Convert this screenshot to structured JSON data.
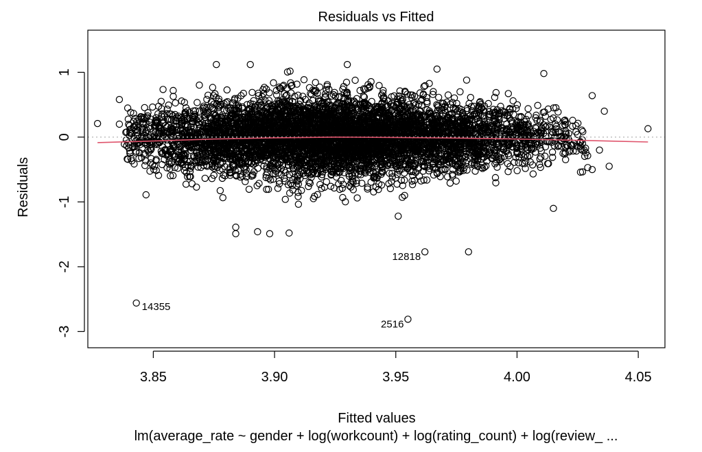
{
  "chart_data": {
    "type": "scatter",
    "title": "Residuals vs Fitted",
    "xlabel": "Fitted values",
    "ylabel": "Residuals",
    "subtitle": "lm(average_rate ~ gender + log(workcount) + log(rating_count) + log(review_ ...",
    "xlim": [
      3.823,
      4.061
    ],
    "ylim": [
      -3.25,
      1.65
    ],
    "x_ticks": [
      3.85,
      3.9,
      3.95,
      4.0,
      4.05
    ],
    "x_tick_labels": [
      "3.85",
      "3.90",
      "3.95",
      "4.00",
      "4.05"
    ],
    "y_ticks": [
      -3,
      -2,
      -1,
      0,
      1
    ],
    "y_tick_labels": [
      "-3",
      "-2",
      "-1",
      "0",
      "1"
    ],
    "reference_line": {
      "y": 0,
      "style": "dotted",
      "color": "#bfbfbf"
    },
    "cloud": {
      "description": "dense elliptical cloud of residuals centered near 0",
      "x_center": 3.925,
      "x_spread": 0.045,
      "y_center": 0,
      "y_spread": 0.33,
      "approx_points": 6000
    },
    "outliers": [
      {
        "x": 3.843,
        "y": -2.56,
        "label": "14355"
      },
      {
        "x": 3.955,
        "y": -2.81,
        "label": "2516"
      },
      {
        "x": 3.962,
        "y": -1.77,
        "label": "12818"
      },
      {
        "x": 3.98,
        "y": -1.77,
        "label": ""
      },
      {
        "x": 3.827,
        "y": 0.21,
        "label": ""
      },
      {
        "x": 3.836,
        "y": 0.58,
        "label": ""
      },
      {
        "x": 3.836,
        "y": 0.2,
        "label": ""
      },
      {
        "x": 3.847,
        "y": -0.89,
        "label": ""
      },
      {
        "x": 3.884,
        "y": -1.49,
        "label": ""
      },
      {
        "x": 3.884,
        "y": -1.39,
        "label": ""
      },
      {
        "x": 3.893,
        "y": -1.46,
        "label": ""
      },
      {
        "x": 3.898,
        "y": -1.49,
        "label": ""
      },
      {
        "x": 3.906,
        "y": -1.48,
        "label": ""
      },
      {
        "x": 3.951,
        "y": -1.22,
        "label": ""
      },
      {
        "x": 4.015,
        "y": -1.1,
        "label": ""
      },
      {
        "x": 4.031,
        "y": 0.64,
        "label": ""
      },
      {
        "x": 4.036,
        "y": 0.4,
        "label": ""
      },
      {
        "x": 4.031,
        "y": -0.5,
        "label": ""
      },
      {
        "x": 4.038,
        "y": -0.45,
        "label": ""
      },
      {
        "x": 4.054,
        "y": 0.13,
        "label": ""
      },
      {
        "x": 4.034,
        "y": -0.2,
        "label": ""
      },
      {
        "x": 3.967,
        "y": 1.05,
        "label": ""
      },
      {
        "x": 3.93,
        "y": 1.12,
        "label": ""
      },
      {
        "x": 3.876,
        "y": 1.12,
        "label": ""
      },
      {
        "x": 3.89,
        "y": 1.12,
        "label": ""
      }
    ],
    "smooth": {
      "color": "#df536b",
      "x": [
        3.827,
        3.85,
        3.875,
        3.9,
        3.925,
        3.95,
        3.975,
        4.0,
        4.025,
        4.054
      ],
      "y": [
        -0.085,
        -0.06,
        -0.03,
        -0.01,
        0.0,
        -0.005,
        -0.015,
        -0.03,
        -0.05,
        -0.075
      ]
    }
  }
}
